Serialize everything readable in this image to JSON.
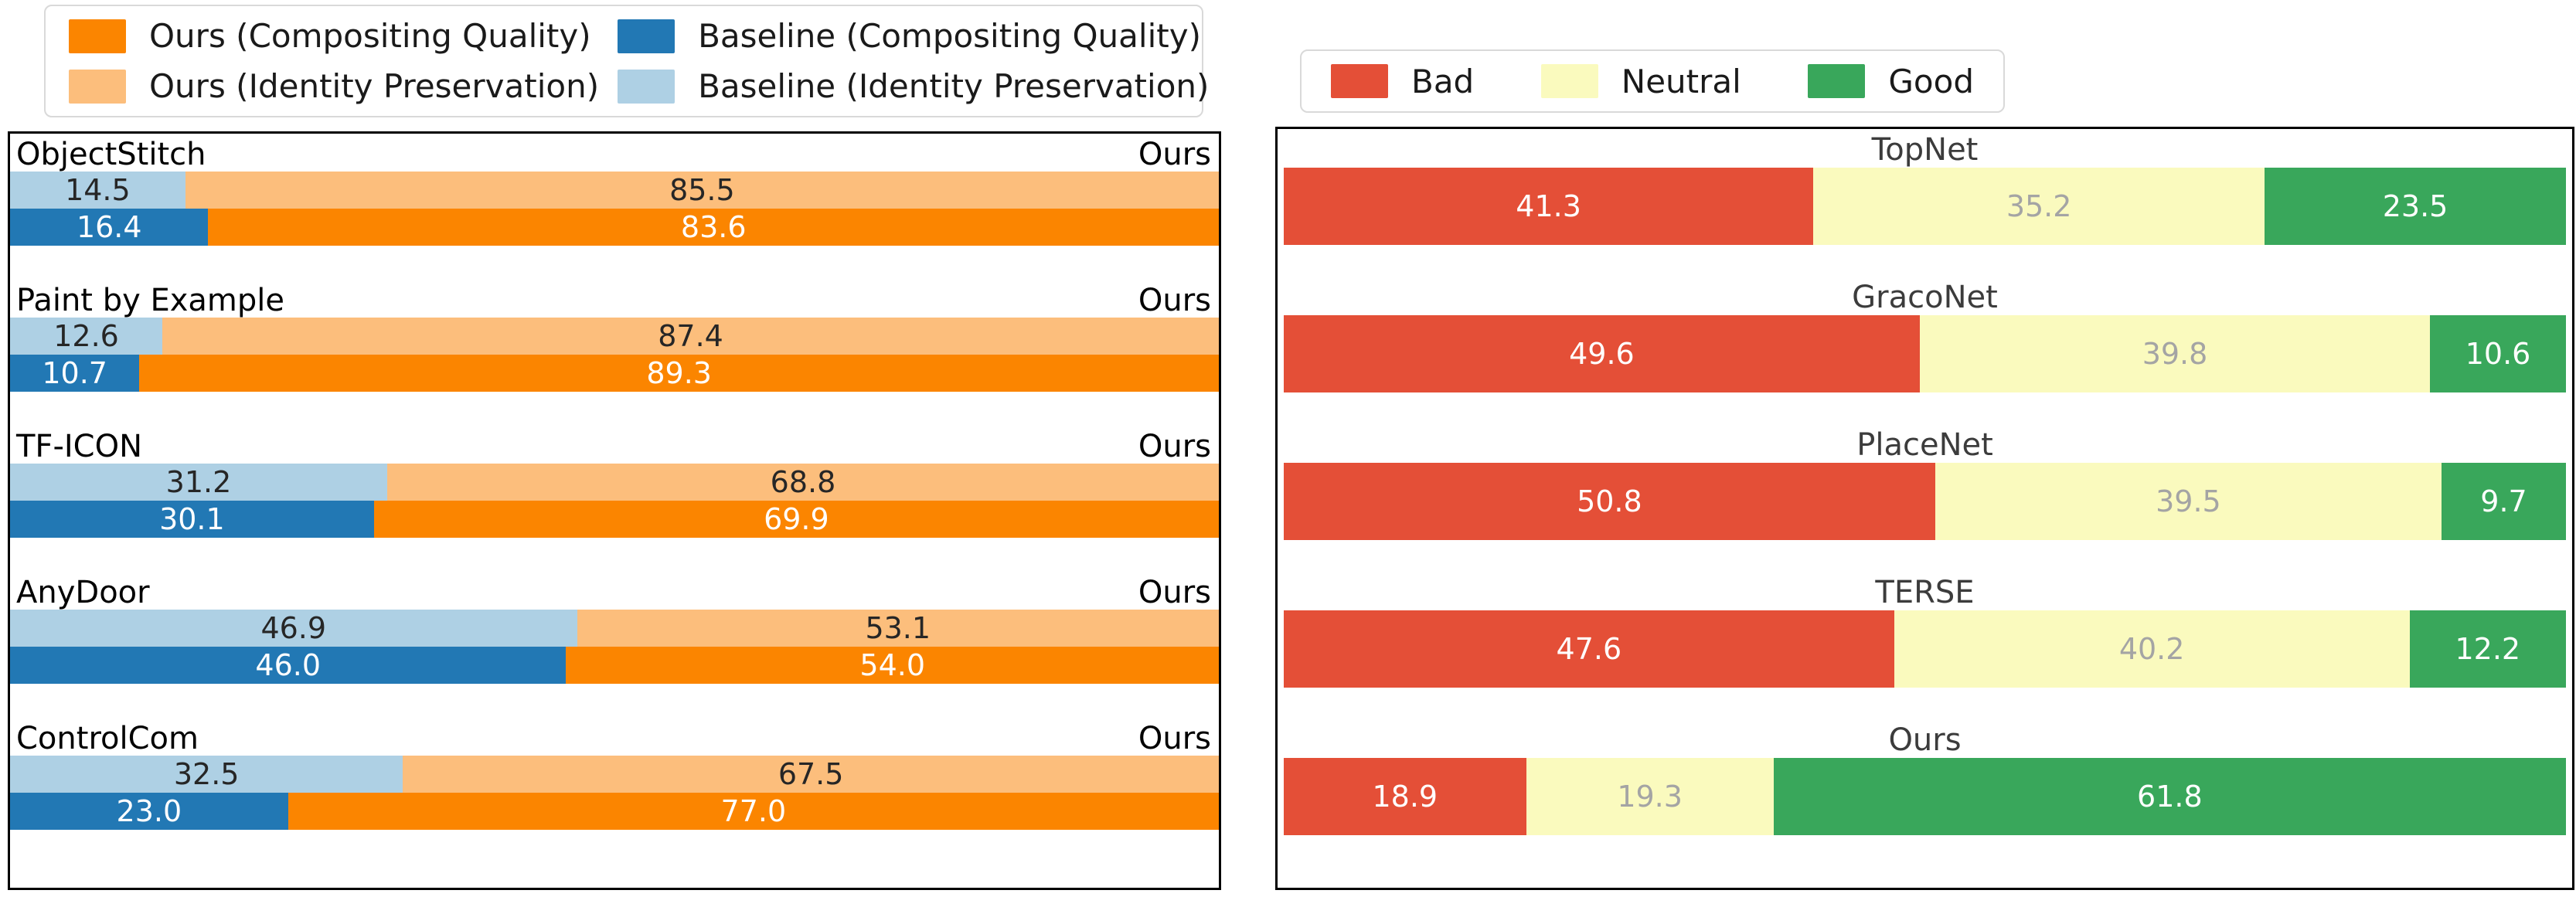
{
  "chart_data": [
    {
      "type": "bar",
      "orientation": "horizontal",
      "stacked": true,
      "title": "",
      "xlim": [
        0,
        100
      ],
      "grid": false,
      "legend_position": "top",
      "colors": {
        "ours_cq": "#fb8500",
        "ours_ip": "#fcbe7c",
        "baseline_cq": "#2278b4",
        "baseline_ip": "#aed0e4"
      },
      "legend": {
        "ours_cq": {
          "label": "Ours (Compositing Quality)"
        },
        "baseline_cq": {
          "label": "Baseline (Compositing Quality)"
        },
        "ours_ip": {
          "label": "Ours (Identity Preservation)"
        },
        "baseline_ip": {
          "label": "Baseline (Identity Preservation)"
        }
      },
      "groups": [
        {
          "method": "ObjectStitch",
          "ours_label": "Ours",
          "identity_baseline": 14.5,
          "identity_ours": 85.5,
          "compositing_baseline": 16.4,
          "compositing_ours": 83.6
        },
        {
          "method": "Paint by Example",
          "ours_label": "Ours",
          "identity_baseline": 12.6,
          "identity_ours": 87.4,
          "compositing_baseline": 10.7,
          "compositing_ours": 89.3
        },
        {
          "method": "TF-ICON",
          "ours_label": "Ours",
          "identity_baseline": 31.2,
          "identity_ours": 68.8,
          "compositing_baseline": 30.1,
          "compositing_ours": 69.9
        },
        {
          "method": "AnyDoor",
          "ours_label": "Ours",
          "identity_baseline": 46.9,
          "identity_ours": 53.1,
          "compositing_baseline": 46.0,
          "compositing_ours": 54.0
        },
        {
          "method": "ControlCom",
          "ours_label": "Ours",
          "identity_baseline": 32.5,
          "identity_ours": 67.5,
          "compositing_baseline": 23.0,
          "compositing_ours": 77.0
        }
      ]
    },
    {
      "type": "bar",
      "orientation": "horizontal",
      "stacked": true,
      "title": "",
      "xlim": [
        0,
        100
      ],
      "grid": false,
      "legend_position": "top",
      "colors": {
        "bad": "#e44f37",
        "neutral": "#fafabe",
        "good": "#39a75b"
      },
      "legend": {
        "bad": {
          "label": "Bad"
        },
        "neutral": {
          "label": "Neutral"
        },
        "good": {
          "label": "Good"
        }
      },
      "groups": [
        {
          "method": "TopNet",
          "bad": 41.3,
          "neutral": 35.2,
          "good": 23.5
        },
        {
          "method": "GracoNet",
          "bad": 49.6,
          "neutral": 39.8,
          "good": 10.6
        },
        {
          "method": "PlaceNet",
          "bad": 50.8,
          "neutral": 39.5,
          "good": 9.7
        },
        {
          "method": "TERSE",
          "bad": 47.6,
          "neutral": 40.2,
          "good": 12.2
        },
        {
          "method": "Ours",
          "bad": 18.9,
          "neutral": 19.3,
          "good": 61.8
        }
      ]
    }
  ]
}
